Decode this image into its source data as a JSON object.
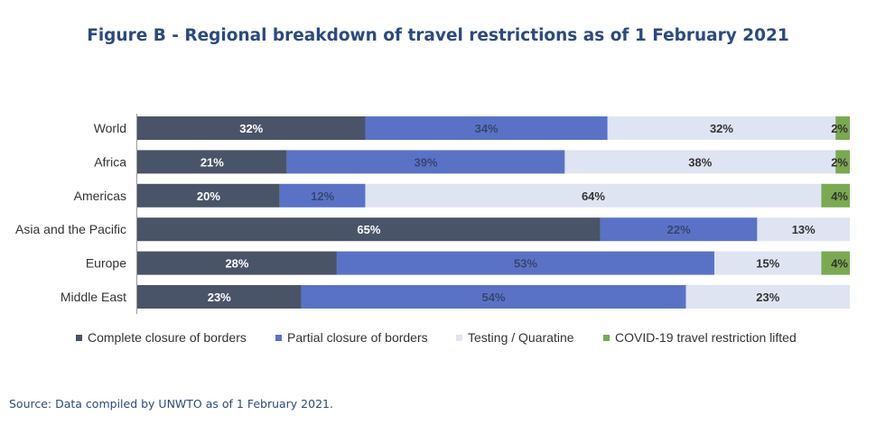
{
  "title": "Figure B - Regional breakdown of travel restrictions as of 1 February 2021",
  "source": "Source: Data compiled by UNWTO as of 1 February 2021.",
  "colors": {
    "complete": "#4a5468",
    "partial": "#5a72c6",
    "testing": "#dfe4f3",
    "lifted": "#7aa951",
    "axis": "#9a9a9a"
  },
  "chart_data": {
    "type": "bar",
    "orientation": "horizontal",
    "stacked": true,
    "percent_stacked": true,
    "categories": [
      "World",
      "Africa",
      "Americas",
      "Asia and the Pacific",
      "Europe",
      "Middle East"
    ],
    "series": [
      {
        "name": "Complete closure of borders",
        "values": [
          32,
          21,
          20,
          65,
          28,
          23
        ]
      },
      {
        "name": "Partial closure of borders",
        "values": [
          34,
          39,
          12,
          22,
          53,
          54
        ]
      },
      {
        "name": "Testing / Quaratine",
        "values": [
          32,
          38,
          64,
          13,
          15,
          23
        ]
      },
      {
        "name": "COVID-19 travel restriction lifted",
        "values": [
          2,
          2,
          4,
          0,
          4,
          0
        ]
      }
    ],
    "xlim": [
      0,
      100
    ],
    "legend_position": "bottom",
    "grid": false
  }
}
